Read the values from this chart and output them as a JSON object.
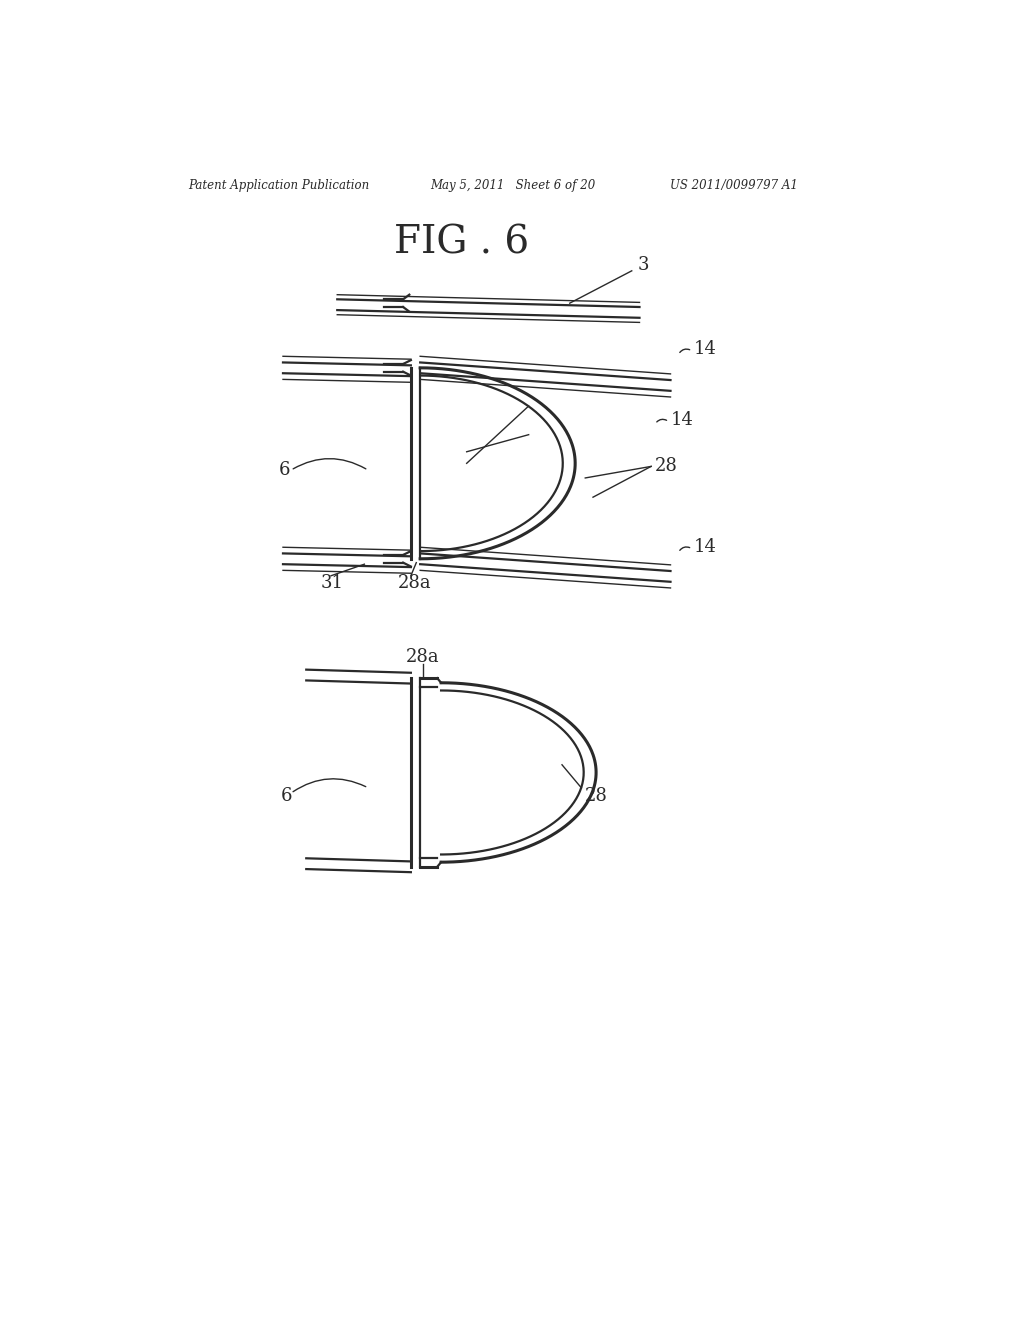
{
  "bg_color": "#ffffff",
  "line_color": "#2a2a2a",
  "header_left": "Patent Application Publication",
  "header_mid": "May 5, 2011   Sheet 6 of 20",
  "header_right": "US 2011/0099797 A1",
  "title": "FIG . 6",
  "fig_width": 10.24,
  "fig_height": 13.2,
  "lw_thin": 1.0,
  "lw_med": 1.6,
  "lw_thick": 2.2
}
